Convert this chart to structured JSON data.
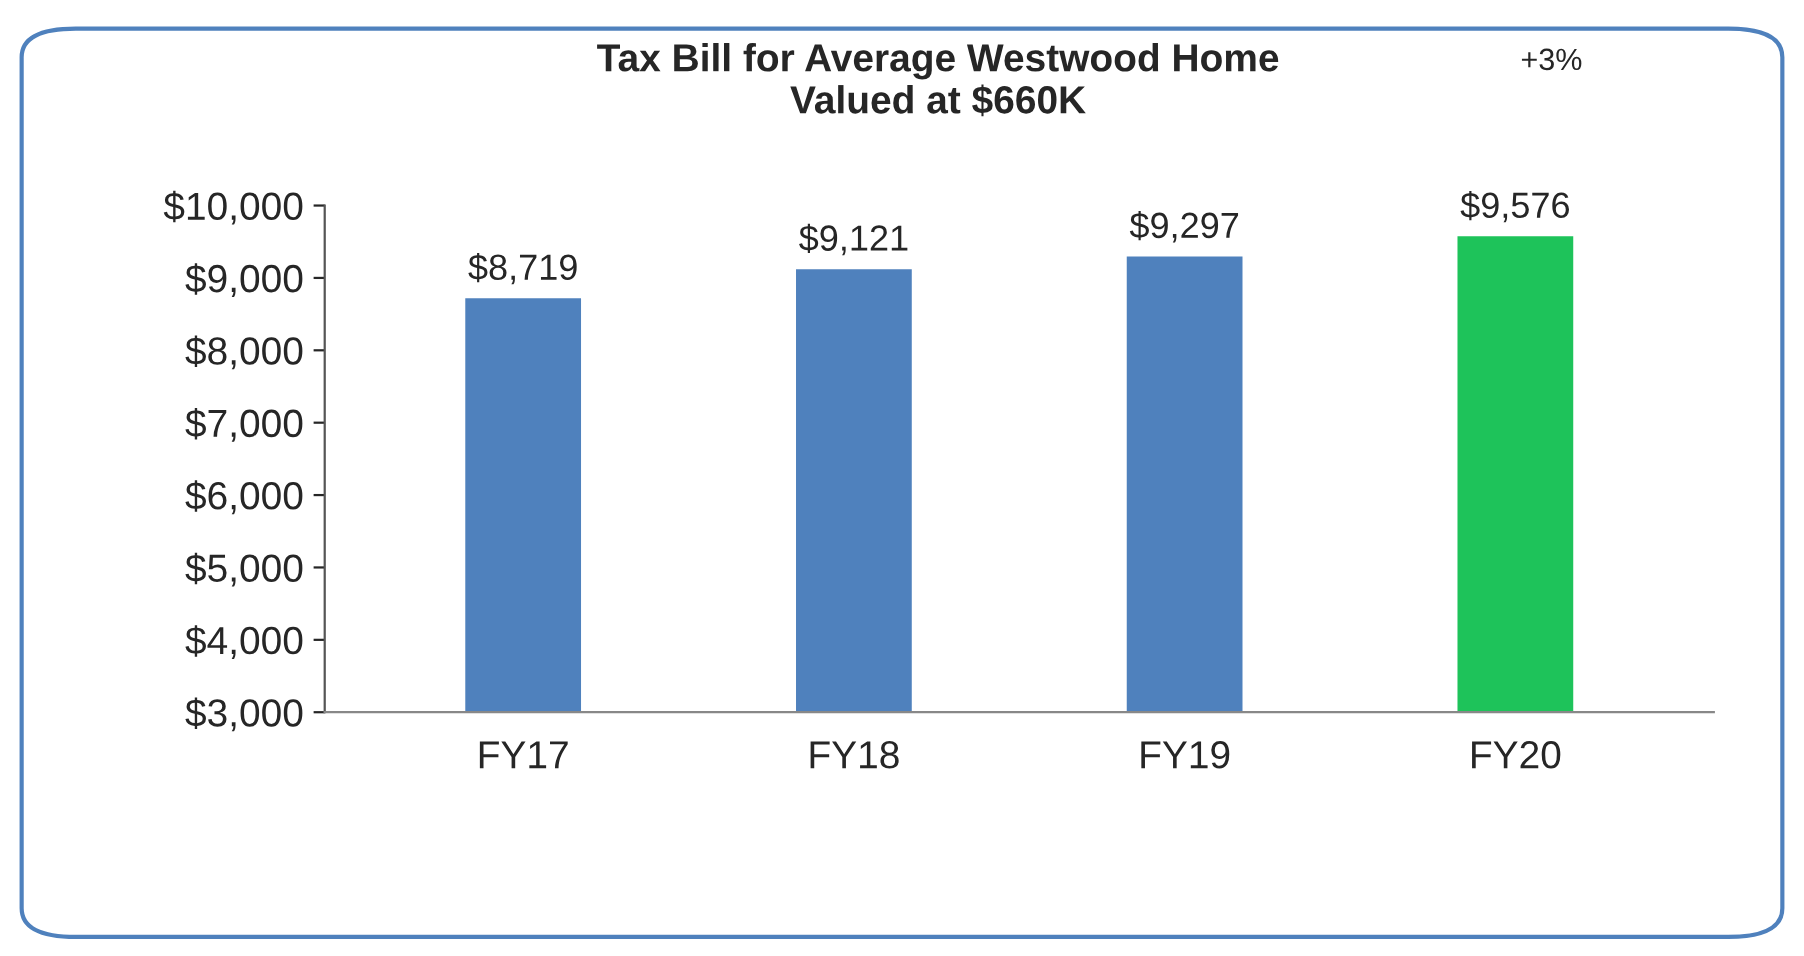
{
  "chart_data": {
    "type": "bar",
    "title": "Tax Bill for Average Westwood Home\nValued at $660K",
    "categories": [
      "FY17",
      "FY18",
      "FY19",
      "FY20"
    ],
    "values": [
      8719,
      9121,
      9297,
      9576
    ],
    "colors": [
      "#4f81bd",
      "#4f81bd",
      "#4f81bd",
      "#1ec35a"
    ],
    "value_labels": [
      "$8,719",
      "$9,121",
      "$9,297",
      "$9,576"
    ],
    "ylim": [
      3000,
      10000
    ],
    "yticks": [
      {
        "value": 3000,
        "label": "$3,000"
      },
      {
        "value": 4000,
        "label": "$4,000"
      },
      {
        "value": 5000,
        "label": "$5,000"
      },
      {
        "value": 6000,
        "label": "$6,000"
      },
      {
        "value": 7000,
        "label": "$7,000"
      },
      {
        "value": 8000,
        "label": "$8,000"
      },
      {
        "value": 9000,
        "label": "$9,000"
      },
      {
        "value": 10000,
        "label": "$10,000"
      }
    ],
    "annotations": [
      "+3%"
    ],
    "grid": false,
    "legend": false
  }
}
